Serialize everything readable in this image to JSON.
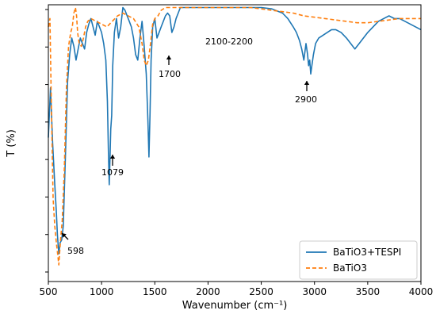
{
  "chart_data": {
    "type": "line",
    "xlabel": "Wavenumber (cm⁻¹)",
    "ylabel": "T (%)",
    "xlim": [
      500,
      4000
    ],
    "ylim": [
      0,
      100
    ],
    "xticks": [
      "500",
      "1000",
      "1500",
      "2000",
      "2500",
      "3000",
      "3500",
      "4000"
    ],
    "y_ticks_labeled": false,
    "grid": false,
    "legend_position": "bottom-right",
    "series": [
      {
        "name": "BaTiO3+TESPI",
        "color": "#1f77b4",
        "style": "solid",
        "x": [
          500,
          520,
          540,
          560,
          575,
          585,
          598,
          610,
          625,
          640,
          660,
          680,
          700,
          720,
          740,
          760,
          780,
          800,
          820,
          840,
          860,
          880,
          900,
          920,
          940,
          960,
          980,
          1000,
          1020,
          1040,
          1055,
          1065,
          1072,
          1079,
          1086,
          1095,
          1105,
          1120,
          1140,
          1160,
          1180,
          1200,
          1220,
          1240,
          1260,
          1280,
          1300,
          1320,
          1340,
          1360,
          1380,
          1400,
          1420,
          1435,
          1445,
          1455,
          1465,
          1480,
          1500,
          1520,
          1540,
          1560,
          1580,
          1600,
          1620,
          1640,
          1660,
          1680,
          1700,
          1720,
          1740,
          1760,
          1800,
          1900,
          2000,
          2100,
          2200,
          2300,
          2400,
          2500,
          2600,
          2700,
          2750,
          2800,
          2830,
          2860,
          2880,
          2900,
          2920,
          2935,
          2945,
          2955,
          2965,
          2975,
          2990,
          3010,
          3040,
          3080,
          3120,
          3160,
          3200,
          3250,
          3300,
          3340,
          3380,
          3420,
          3460,
          3500,
          3550,
          3600,
          3650,
          3700,
          3750,
          3800,
          3850,
          3900,
          3950,
          4000
        ],
        "y": [
          52,
          70,
          50,
          35,
          25,
          17,
          10,
          14,
          15,
          20,
          45,
          72,
          82,
          88,
          85,
          80,
          84,
          88,
          86,
          84,
          90,
          93,
          95,
          92,
          89,
          94,
          92,
          90,
          86,
          80,
          65,
          45,
          35,
          45,
          55,
          60,
          78,
          90,
          95,
          88,
          92,
          99,
          98,
          96,
          94,
          92,
          88,
          82,
          80,
          88,
          94,
          85,
          75,
          58,
          45,
          60,
          80,
          92,
          95,
          88,
          90,
          92,
          94,
          96,
          97,
          96,
          90,
          92,
          95,
          97,
          99,
          99,
          99,
          99,
          99,
          99,
          99,
          99,
          99,
          99,
          98.5,
          97,
          95,
          92,
          90,
          87,
          84,
          80,
          86,
          82,
          78,
          80,
          75,
          78,
          82,
          86,
          88,
          89,
          90,
          91,
          91,
          90,
          88,
          86,
          84,
          86,
          88,
          90,
          92,
          94,
          95,
          96,
          95,
          95,
          94,
          93,
          92,
          91
        ]
      },
      {
        "name": "BaTiO3",
        "color": "#ff7f0e",
        "style": "dashed",
        "x": [
          500,
          515,
          530,
          545,
          560,
          575,
          590,
          598,
          605,
          615,
          630,
          650,
          670,
          690,
          710,
          725,
          740,
          755,
          765,
          775,
          790,
          810,
          830,
          850,
          870,
          900,
          950,
          1000,
          1050,
          1100,
          1150,
          1200,
          1250,
          1300,
          1350,
          1380,
          1400,
          1420,
          1440,
          1460,
          1480,
          1500,
          1530,
          1560,
          1600,
          1650,
          1700,
          1750,
          1800,
          2000,
          2200,
          2400,
          2500,
          2600,
          2700,
          2800,
          2900,
          3000,
          3100,
          3200,
          3300,
          3400,
          3500,
          3600,
          3700,
          3800,
          3900,
          4000
        ],
        "y": [
          92,
          95,
          60,
          30,
          20,
          14,
          9,
          6,
          10,
          15,
          22,
          40,
          70,
          85,
          90,
          92,
          97,
          99,
          96,
          90,
          86,
          85,
          88,
          92,
          94,
          95,
          94,
          93,
          92,
          94,
          96,
          97,
          96,
          95,
          92,
          86,
          80,
          78,
          80,
          86,
          93,
          95,
          96,
          98,
          99,
          99,
          99,
          99,
          99,
          99,
          99,
          99,
          98.5,
          98,
          97.5,
          97,
          96,
          95.5,
          95,
          94.5,
          94,
          93.5,
          93.5,
          94,
          94.5,
          95,
          95,
          95
        ]
      }
    ],
    "annotations": [
      {
        "text": "598",
        "x": 598,
        "y": 10,
        "arrow": "up-left"
      },
      {
        "text": "1079",
        "x": 1079,
        "y": 35,
        "arrow": "up"
      },
      {
        "text": "1700",
        "x": 1650,
        "y": 85,
        "arrow": "up"
      },
      {
        "text": "2100-2200",
        "x": 2150,
        "y": 96,
        "arrow": "none"
      },
      {
        "text": "2900",
        "x": 2900,
        "y": 75,
        "arrow": "up"
      }
    ]
  }
}
